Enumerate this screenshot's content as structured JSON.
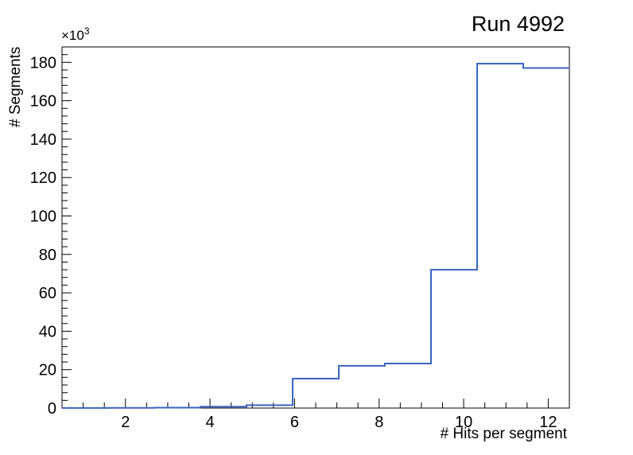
{
  "header": {
    "title": "Run 4992"
  },
  "chart_data": {
    "type": "histogram-step",
    "title": "Run 4992",
    "xlabel": "# Hits per segment",
    "ylabel": "# Segments",
    "y_multiplier_base": "×10",
    "y_multiplier_exp": "3",
    "y_units": "thousands (×10³ segments)",
    "xlim": [
      0.5,
      12.5
    ],
    "ylim_k": [
      0,
      188
    ],
    "x_major_ticks": [
      2,
      4,
      6,
      8,
      10,
      12
    ],
    "x_minor_step": 0.5,
    "y_major_ticks_k": [
      0,
      20,
      40,
      60,
      80,
      100,
      120,
      140,
      160,
      180
    ],
    "y_minor_step_k": 4,
    "n_bins": 11,
    "bin_edges": [
      0.5,
      1.5909,
      2.6818,
      3.7727,
      4.8636,
      5.9545,
      7.0455,
      8.1364,
      9.2273,
      10.3182,
      11.4091,
      12.5
    ],
    "bin_values_k": [
      0.05,
      0.1,
      0.2,
      0.7,
      1.5,
      15.3,
      22.0,
      23.2,
      72.0,
      179.3,
      177.0
    ],
    "grid": false,
    "legend": "none",
    "line_color": "#3a64c2",
    "line_width": 2,
    "frame_color": "#000000",
    "background_color": "#ffffff",
    "tick_style": "inward",
    "major_tick_len": 12,
    "minor_tick_len": 7
  }
}
